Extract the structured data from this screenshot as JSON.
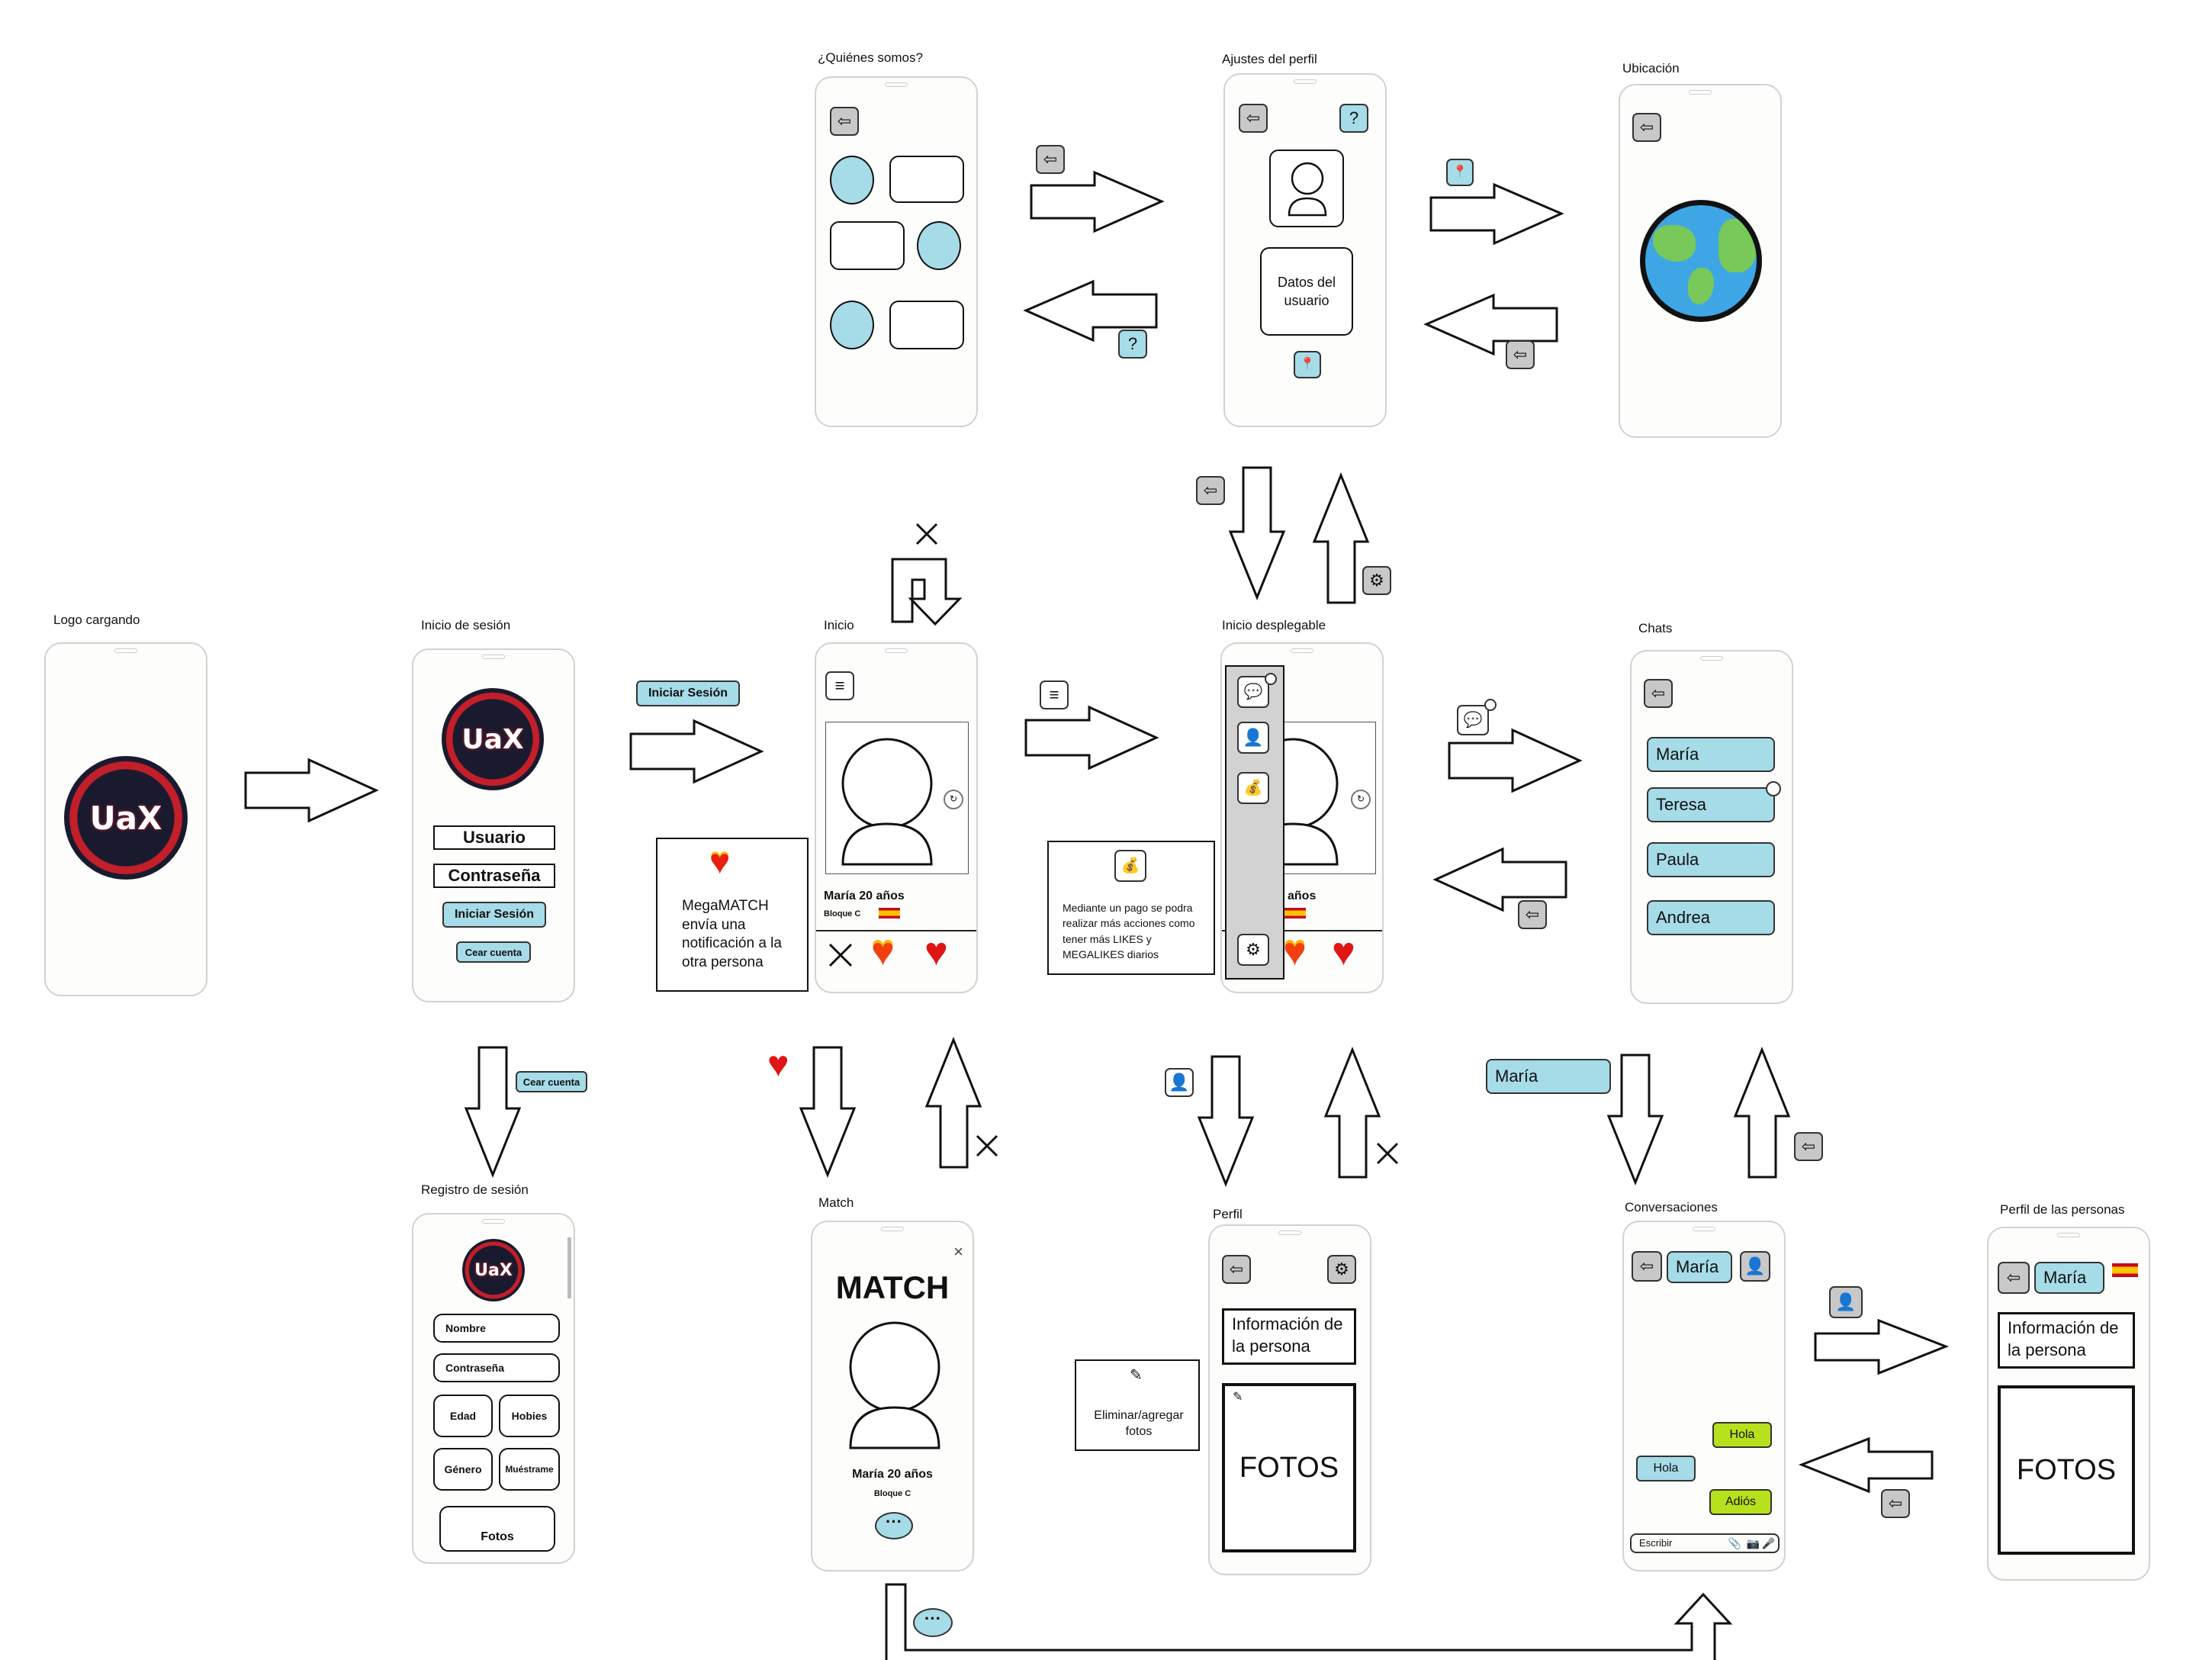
{
  "titles": {
    "logo": "Logo cargando",
    "login": "Inicio de sesión",
    "registro": "Registro de sesión",
    "inicio": "Inicio",
    "match": "Match",
    "quienes": "¿Quiénes somos?",
    "ajustes": "Ajustes del perfil",
    "ubicacion": "Ubicación",
    "desplegable": "Inicio desplegable",
    "perfil": "Perfil",
    "chats": "Chats",
    "conversaciones": "Conversaciones",
    "perfil_personas": "Perfil de las personas"
  },
  "logo_text": "UaX",
  "login": {
    "usuario": "Usuario",
    "contrasena": "Contraseña",
    "iniciar": "Iniciar Sesión",
    "crear": "Cear cuenta"
  },
  "registro": {
    "nombre": "Nombre",
    "contrasena": "Contraseña",
    "edad": "Edad",
    "hobies": "Hobies",
    "genero": "Género",
    "muestrame": "Muéstrame",
    "fotos": "Fotos"
  },
  "flow_labels": {
    "iniciar_sesion": "Iniciar Sesión",
    "crear_cuenta": "Cear cuenta",
    "maria": "María"
  },
  "profile": {
    "name_age": "María 20 años",
    "block": "Bloque C",
    "age_only": "años"
  },
  "notes": {
    "megamatch": "MegaMATCH envía una notificación a la otra persona",
    "pago": "Mediante un pago se podra realizar más acciones como tener más LIKES y MEGALIKES diarios",
    "eliminar": "Eliminar/agregar fotos"
  },
  "ajustes": {
    "datos": "Datos del usuario"
  },
  "match": {
    "title": "MATCH",
    "name_age": "María 20 años",
    "block": "Bloque C"
  },
  "chats": {
    "items": [
      "María",
      "Teresa",
      "Paula",
      "Andrea"
    ]
  },
  "conversation": {
    "contact": "María",
    "messages": [
      {
        "text": "Hola",
        "side": "right",
        "color": "#b7e11c"
      },
      {
        "text": "Hola",
        "side": "left",
        "color": "#a6dbe8"
      },
      {
        "text": "Adiós",
        "side": "right",
        "color": "#b7e11c"
      }
    ],
    "placeholder": "Escribir"
  },
  "perfil": {
    "info": "Información de la persona",
    "fotos": "FOTOS"
  },
  "perfil_personas": {
    "name": "María",
    "info": "Información de la persona",
    "fotos": "FOTOS"
  },
  "colors": {
    "accent_blue": "#a6dbe8",
    "accent_green": "#b7e11c",
    "icon_gray": "#c8c8c8",
    "heart_red": "#e01515"
  }
}
